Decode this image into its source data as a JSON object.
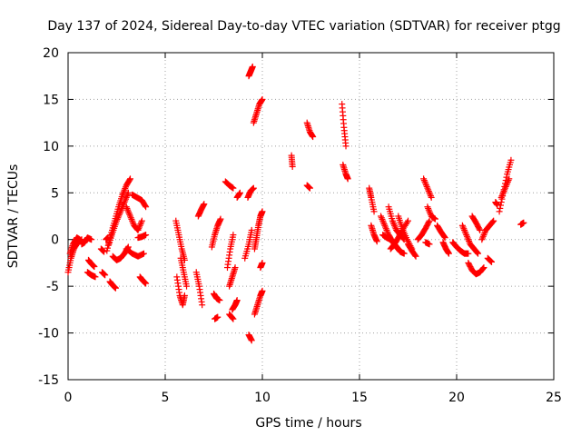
{
  "chart_data": {
    "type": "scatter",
    "title": "Day 137 of 2024, Sidereal Day-to-day VTEC variation (SDTVAR) for receiver ptgg",
    "xlabel": "GPS time / hours",
    "ylabel": "SDTVAR / TECUs",
    "xlim": [
      0,
      25
    ],
    "ylim": [
      -15,
      20
    ],
    "xticks": [
      0,
      5,
      10,
      15,
      20,
      25
    ],
    "yticks": [
      -15,
      -10,
      -5,
      0,
      5,
      10,
      15,
      20
    ],
    "grid": true,
    "marker": "+",
    "color": "#ff0000",
    "arcs": [
      {
        "x": [
          0.0,
          0.15,
          0.3,
          0.5,
          0.7
        ],
        "y": [
          -3.5,
          -2.0,
          -1.0,
          -0.3,
          0.0
        ]
      },
      {
        "x": [
          0.1,
          0.25,
          0.45,
          0.6
        ],
        "y": [
          -1.5,
          -0.5,
          0.2,
          0.0
        ]
      },
      {
        "x": [
          0.7,
          0.85,
          1.0,
          1.2
        ],
        "y": [
          -0.5,
          -0.3,
          0.2,
          0.0
        ]
      },
      {
        "x": [
          1.05,
          1.2,
          1.35
        ],
        "y": [
          -2.2,
          -2.6,
          -2.9
        ]
      },
      {
        "x": [
          1.0,
          1.2,
          1.4
        ],
        "y": [
          -3.5,
          -3.8,
          -4.0
        ]
      },
      {
        "x": [
          1.75,
          1.9
        ],
        "y": [
          -3.5,
          -3.8
        ]
      },
      {
        "x": [
          1.95,
          2.05
        ],
        "y": [
          0.0,
          0.2
        ]
      },
      {
        "x": [
          1.7,
          1.85
        ],
        "y": [
          -1.0,
          -1.3
        ]
      },
      {
        "x": [
          2.15,
          2.3,
          2.45
        ],
        "y": [
          -4.5,
          -4.9,
          -5.2
        ]
      },
      {
        "x": [
          2.0,
          2.2,
          2.4,
          2.6,
          2.8,
          3.0,
          3.2
        ],
        "y": [
          -1.2,
          0.5,
          2.0,
          3.5,
          4.8,
          5.8,
          6.5
        ]
      },
      {
        "x": [
          2.1,
          2.3,
          2.5,
          2.7,
          2.9,
          3.1
        ],
        "y": [
          -0.5,
          0.8,
          2.0,
          3.0,
          4.0,
          5.0
        ]
      },
      {
        "x": [
          2.3,
          2.5,
          2.7,
          2.9,
          3.1
        ],
        "y": [
          -1.8,
          -2.2,
          -2.0,
          -1.5,
          -0.8
        ]
      },
      {
        "x": [
          3.0,
          3.2,
          3.4,
          3.6,
          3.8
        ],
        "y": [
          3.5,
          2.5,
          1.5,
          1.0,
          2.0
        ]
      },
      {
        "x": [
          3.0,
          3.3,
          3.6,
          3.9
        ],
        "y": [
          -1.0,
          -1.5,
          -1.8,
          -1.5
        ]
      },
      {
        "x": [
          3.3,
          3.55,
          3.8,
          4.0
        ],
        "y": [
          4.8,
          4.5,
          4.2,
          3.5
        ]
      },
      {
        "x": [
          3.6,
          3.8,
          4.0
        ],
        "y": [
          0.2,
          0.3,
          0.5
        ]
      },
      {
        "x": [
          3.7,
          3.85,
          4.0
        ],
        "y": [
          -4.0,
          -4.4,
          -4.7
        ]
      },
      {
        "x": [
          5.55,
          5.7,
          5.85,
          6.0
        ],
        "y": [
          2.0,
          0.5,
          -1.0,
          -2.2
        ]
      },
      {
        "x": [
          5.6,
          5.75,
          5.9,
          6.0
        ],
        "y": [
          -4.0,
          -6.0,
          -7.0,
          -6.0
        ]
      },
      {
        "x": [
          5.8,
          5.95,
          6.1
        ],
        "y": [
          -2.0,
          -3.5,
          -5.0
        ]
      },
      {
        "x": [
          6.6,
          6.75,
          6.9
        ],
        "y": [
          -3.5,
          -5.0,
          -7.0
        ]
      },
      {
        "x": [
          6.7,
          6.85,
          7.0
        ],
        "y": [
          2.5,
          3.2,
          3.8
        ]
      },
      {
        "x": [
          7.4,
          7.55,
          7.7,
          7.85
        ],
        "y": [
          -0.8,
          0.5,
          1.5,
          2.2
        ]
      },
      {
        "x": [
          7.5,
          7.65,
          7.8
        ],
        "y": [
          -5.8,
          -6.3,
          -6.5
        ]
      },
      {
        "x": [
          7.55,
          7.7
        ],
        "y": [
          -8.5,
          -8.3
        ]
      },
      {
        "x": [
          8.2,
          8.35,
          8.5
        ],
        "y": [
          -3.0,
          -1.0,
          0.5
        ]
      },
      {
        "x": [
          8.3,
          8.45,
          8.6
        ],
        "y": [
          -5.0,
          -4.0,
          -3.0
        ]
      },
      {
        "x": [
          8.1,
          8.3,
          8.5
        ],
        "y": [
          6.2,
          5.8,
          5.5
        ]
      },
      {
        "x": [
          8.45,
          8.6,
          8.7
        ],
        "y": [
          -7.5,
          -7.0,
          -6.5
        ]
      },
      {
        "x": [
          8.3,
          8.5
        ],
        "y": [
          -8.0,
          -8.5
        ]
      },
      {
        "x": [
          8.7,
          8.85
        ],
        "y": [
          4.5,
          5.0
        ]
      },
      {
        "x": [
          9.1,
          9.3,
          9.45
        ],
        "y": [
          -2.0,
          -0.5,
          1.0
        ]
      },
      {
        "x": [
          9.25,
          9.4,
          9.55
        ],
        "y": [
          4.5,
          5.2,
          5.5
        ]
      },
      {
        "x": [
          9.3,
          9.45
        ],
        "y": [
          -10.2,
          -10.8
        ]
      },
      {
        "x": [
          9.3,
          9.4,
          9.5
        ],
        "y": [
          17.5,
          18.0,
          18.5
        ]
      },
      {
        "x": [
          9.55,
          9.7,
          9.85,
          10.0
        ],
        "y": [
          12.5,
          13.5,
          14.5,
          15.0
        ]
      },
      {
        "x": [
          9.6,
          9.7,
          9.8,
          9.9,
          10.0
        ],
        "y": [
          -1.0,
          0.2,
          1.5,
          2.5,
          3.0
        ]
      },
      {
        "x": [
          9.6,
          9.75,
          9.9,
          10.0
        ],
        "y": [
          -8.0,
          -7.0,
          -6.0,
          -5.5
        ]
      },
      {
        "x": [
          9.9,
          10.0
        ],
        "y": [
          -3.0,
          -2.5
        ]
      },
      {
        "x": [
          11.5,
          11.55
        ],
        "y": [
          9.0,
          7.8
        ]
      },
      {
        "x": [
          12.3,
          12.45,
          12.6
        ],
        "y": [
          12.5,
          11.5,
          11.0
        ]
      },
      {
        "x": [
          12.3,
          12.45
        ],
        "y": [
          5.8,
          5.5
        ]
      },
      {
        "x": [
          14.1,
          14.2,
          14.3
        ],
        "y": [
          14.5,
          12.0,
          10.0
        ]
      },
      {
        "x": [
          14.15,
          14.3,
          14.4
        ],
        "y": [
          8.0,
          7.0,
          6.5
        ]
      },
      {
        "x": [
          15.5,
          15.6,
          15.75
        ],
        "y": [
          5.5,
          4.5,
          3.0
        ]
      },
      {
        "x": [
          15.6,
          15.75,
          15.9
        ],
        "y": [
          1.5,
          0.5,
          -0.2
        ]
      },
      {
        "x": [
          16.1,
          16.3,
          16.5,
          16.7,
          16.9,
          17.1,
          17.3
        ],
        "y": [
          2.5,
          1.5,
          0.5,
          -0.2,
          -0.8,
          -1.3,
          -1.5
        ]
      },
      {
        "x": [
          16.2,
          16.4,
          16.6,
          16.8,
          17.0
        ],
        "y": [
          0.5,
          0.2,
          0.0,
          -0.5,
          -1.0
        ]
      },
      {
        "x": [
          16.5,
          16.7,
          16.9,
          17.1,
          17.3
        ],
        "y": [
          3.5,
          2.0,
          1.0,
          0.5,
          0.0
        ]
      },
      {
        "x": [
          16.6,
          16.8,
          17.0,
          17.2,
          17.5
        ],
        "y": [
          -1.0,
          -0.5,
          0.2,
          1.0,
          2.0
        ]
      },
      {
        "x": [
          17.0,
          17.2,
          17.45,
          17.7
        ],
        "y": [
          2.5,
          1.2,
          0.0,
          -1.0
        ]
      },
      {
        "x": [
          17.5,
          17.7,
          17.9
        ],
        "y": [
          -0.5,
          -1.2,
          -1.8
        ]
      },
      {
        "x": [
          18.0,
          18.2,
          18.4,
          18.6
        ],
        "y": [
          0.0,
          0.5,
          1.2,
          2.0
        ]
      },
      {
        "x": [
          18.3,
          18.5,
          18.7
        ],
        "y": [
          6.5,
          5.5,
          4.5
        ]
      },
      {
        "x": [
          18.5,
          18.7,
          18.9
        ],
        "y": [
          3.5,
          2.5,
          2.2
        ]
      },
      {
        "x": [
          18.4,
          18.6
        ],
        "y": [
          -0.3,
          -0.5
        ]
      },
      {
        "x": [
          19.0,
          19.2,
          19.4
        ],
        "y": [
          1.5,
          0.8,
          0.2
        ]
      },
      {
        "x": [
          19.3,
          19.45,
          19.6
        ],
        "y": [
          -0.3,
          -1.0,
          -1.5
        ]
      },
      {
        "x": [
          19.8,
          20.0,
          20.2,
          20.4,
          20.6
        ],
        "y": [
          -0.3,
          -0.8,
          -1.2,
          -1.5,
          -1.5
        ]
      },
      {
        "x": [
          20.3,
          20.5,
          20.7,
          20.9,
          21.1
        ],
        "y": [
          1.5,
          0.5,
          -0.5,
          -1.0,
          -1.5
        ]
      },
      {
        "x": [
          20.6,
          20.8,
          21.0,
          21.2,
          21.4
        ],
        "y": [
          -2.5,
          -3.3,
          -3.7,
          -3.5,
          -3.0
        ]
      },
      {
        "x": [
          20.8,
          21.0,
          21.2
        ],
        "y": [
          2.5,
          1.8,
          1.0
        ]
      },
      {
        "x": [
          21.3,
          21.5,
          21.7,
          21.9
        ],
        "y": [
          0.0,
          1.0,
          1.5,
          2.0
        ]
      },
      {
        "x": [
          21.6,
          21.8
        ],
        "y": [
          -2.0,
          -2.4
        ]
      },
      {
        "x": [
          22.2,
          22.4,
          22.6,
          22.8
        ],
        "y": [
          3.0,
          5.0,
          7.0,
          8.5
        ]
      },
      {
        "x": [
          22.3,
          22.5,
          22.7
        ],
        "y": [
          4.5,
          5.5,
          6.5
        ]
      },
      {
        "x": [
          22.0,
          22.1
        ],
        "y": [
          4.0,
          3.7
        ]
      },
      {
        "x": [
          23.3,
          23.45
        ],
        "y": [
          1.6,
          1.8
        ]
      }
    ]
  }
}
